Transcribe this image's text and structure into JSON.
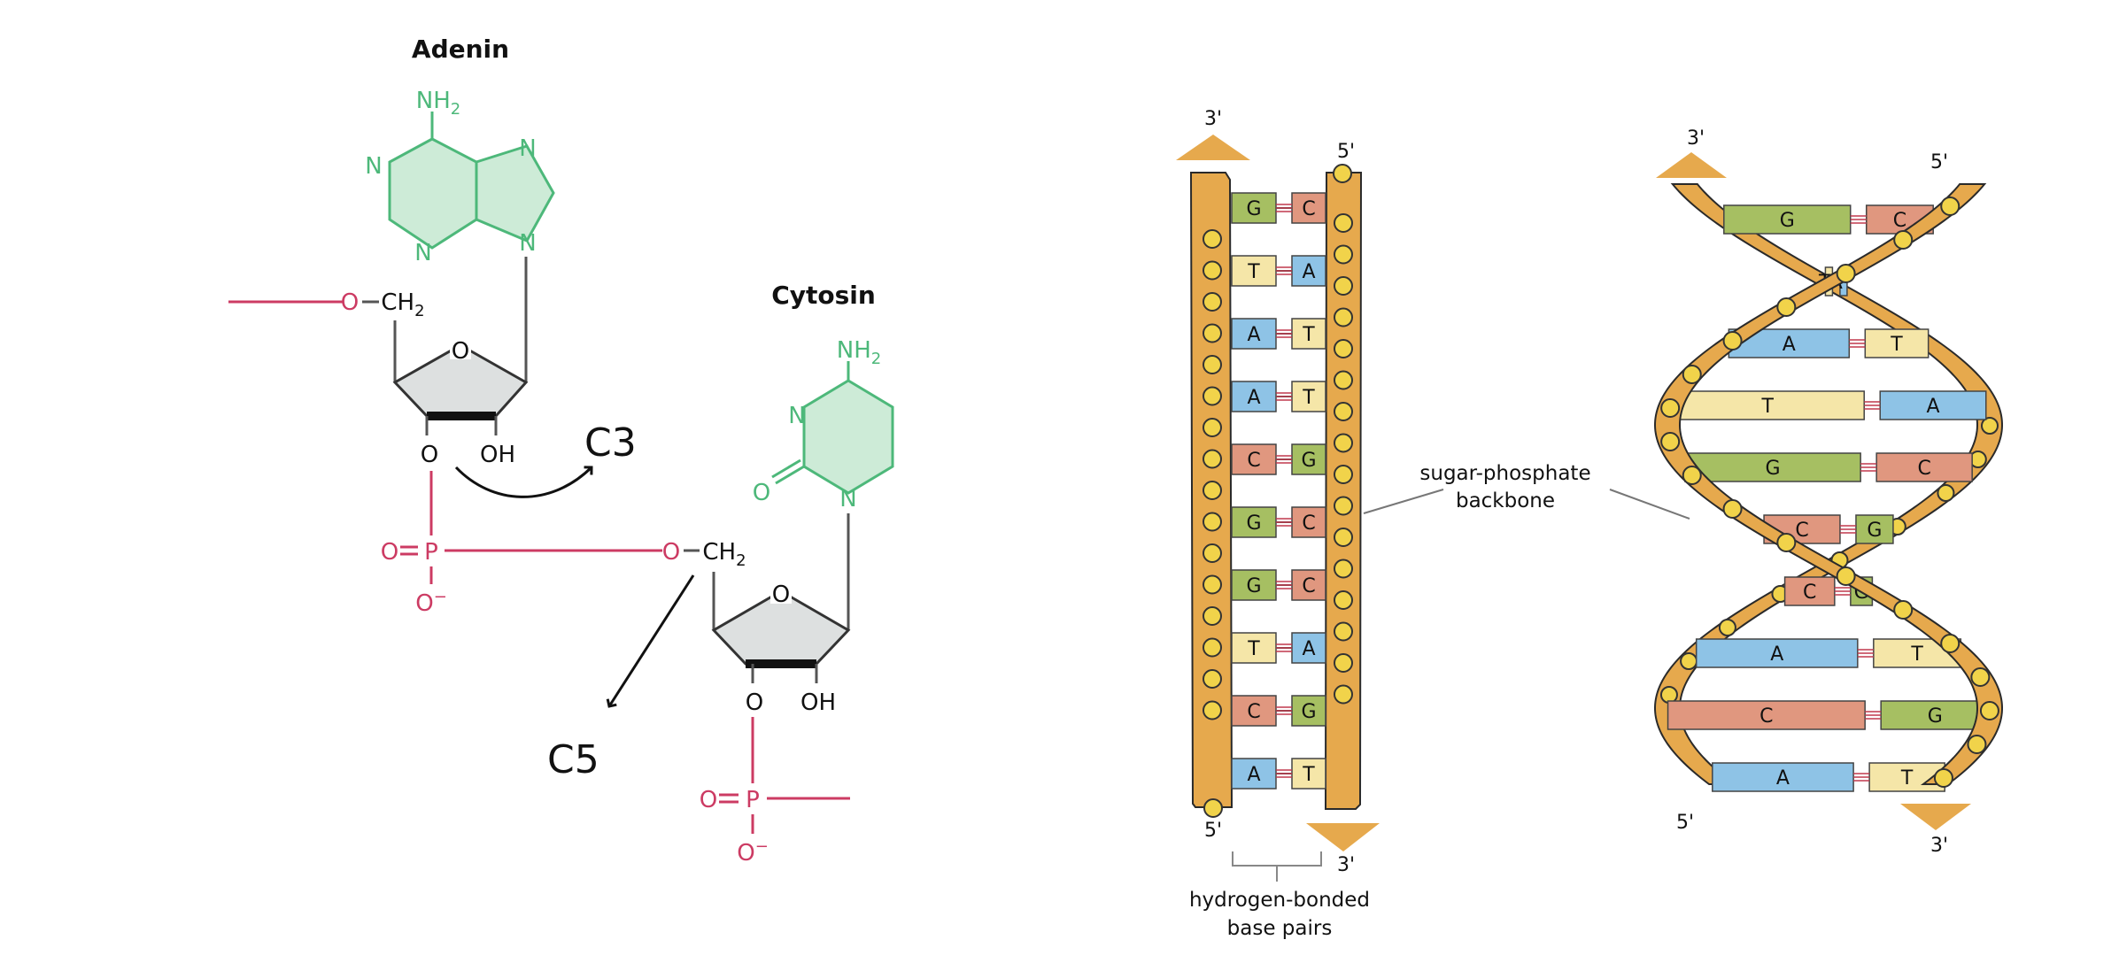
{
  "chemistry": {
    "adenine": {
      "name": "Adenin",
      "amine": "NH",
      "amine_sub": "2",
      "n1": "N",
      "n2": "N",
      "n3": "N",
      "n4": "N",
      "ch2": "CH",
      "ch2_sub": "2",
      "o_link": "O",
      "ring_o": "O",
      "o_3prime": "O",
      "oh": "OH"
    },
    "phosphate_1": {
      "o_double": "O",
      "p": "P",
      "o_minus": "O",
      "minus": "−",
      "o_bridge": "O"
    },
    "cytosine": {
      "name": "Cytosin",
      "amine": "NH",
      "amine_sub": "2",
      "n_top": "N",
      "n_bottom": "N",
      "carbonyl_o": "O",
      "ch2": "CH",
      "ch2_sub": "2",
      "ring_o": "O",
      "o_3prime": "O",
      "oh": "OH"
    },
    "phosphate_2": {
      "o_double": "O",
      "p": "P",
      "o_minus": "O",
      "minus": "−"
    },
    "annotations": {
      "c3": "C3",
      "c5": "C5"
    },
    "colors": {
      "base": "#4db87a",
      "phosphate": "#cc3b63",
      "sugar": "#dde0e0",
      "ink": "#111111"
    }
  },
  "ladder": {
    "top_left_end": "3'",
    "top_right_end": "5'",
    "bottom_left_end": "5'",
    "bottom_right_end": "3'",
    "pairs": [
      {
        "left": "G",
        "right": "C"
      },
      {
        "left": "T",
        "right": "A"
      },
      {
        "left": "A",
        "right": "T"
      },
      {
        "left": "A",
        "right": "T"
      },
      {
        "left": "C",
        "right": "G"
      },
      {
        "left": "G",
        "right": "C"
      },
      {
        "left": "G",
        "right": "C"
      },
      {
        "left": "T",
        "right": "A"
      },
      {
        "left": "C",
        "right": "G"
      },
      {
        "left": "A",
        "right": "T"
      }
    ],
    "label_bracket_line1": "hydrogen-bonded",
    "label_bracket_line2": "base pairs",
    "label_backbone_line1": "sugar-phosphate",
    "label_backbone_line2": "backbone"
  },
  "helix": {
    "top_left_end": "3'",
    "top_right_end": "5'",
    "bottom_left_end": "5'",
    "bottom_right_end": "3'",
    "pairs": [
      {
        "left": "G",
        "right": "C"
      },
      {
        "left": "T",
        "right": "A"
      },
      {
        "left": "A",
        "right": "T"
      },
      {
        "left": "T",
        "right": "A"
      },
      {
        "left": "G",
        "right": "C"
      },
      {
        "left": "C",
        "right": "G"
      },
      {
        "left": "C",
        "right": "G"
      },
      {
        "left": "A",
        "right": "T"
      },
      {
        "left": "C",
        "right": "G"
      },
      {
        "left": "A",
        "right": "T"
      }
    ]
  },
  "base_colors": {
    "G": "#a6bf62",
    "C": "#e0977f",
    "A": "#8ec3e6",
    "T": "#f5e6a8"
  },
  "backbone_color": "#e6a94d",
  "node_color": "#f1d34a"
}
